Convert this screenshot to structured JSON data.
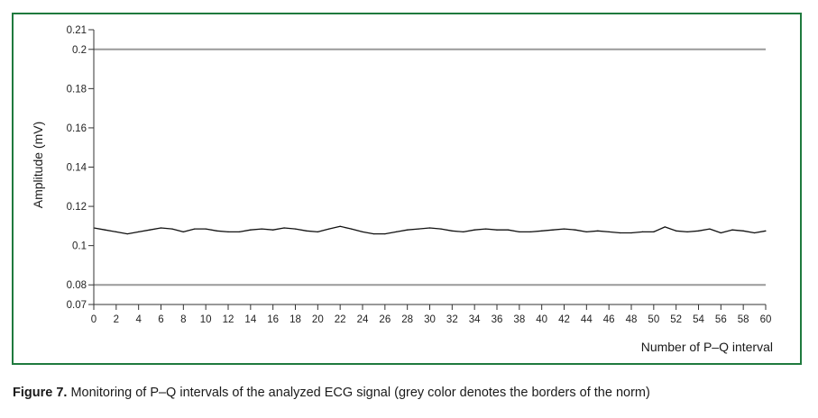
{
  "chart_data": {
    "type": "line",
    "xlabel": "Number of P–Q interval",
    "ylabel": "Amplitude (mV)",
    "xlim": [
      0,
      60
    ],
    "ylim": [
      0.07,
      0.21
    ],
    "x_ticks": [
      0,
      2,
      4,
      6,
      8,
      10,
      12,
      14,
      16,
      18,
      20,
      22,
      24,
      26,
      28,
      30,
      32,
      34,
      36,
      38,
      40,
      42,
      44,
      46,
      48,
      50,
      52,
      54,
      56,
      58,
      60
    ],
    "y_ticks": [
      0.07,
      0.08,
      0.1,
      0.12,
      0.14,
      0.16,
      0.18,
      0.2,
      0.21
    ],
    "norm_lines": {
      "upper": 0.2,
      "lower": 0.08,
      "color": "#9a9a9a"
    },
    "series_color": "#111111",
    "grid": false,
    "x": [
      0,
      1,
      2,
      3,
      4,
      5,
      6,
      7,
      8,
      9,
      10,
      11,
      12,
      13,
      14,
      15,
      16,
      17,
      18,
      19,
      20,
      21,
      22,
      23,
      24,
      25,
      26,
      27,
      28,
      29,
      30,
      31,
      32,
      33,
      34,
      35,
      36,
      37,
      38,
      39,
      40,
      41,
      42,
      43,
      44,
      45,
      46,
      47,
      48,
      49,
      50,
      51,
      52,
      53,
      54,
      55,
      56,
      57,
      58,
      59,
      60
    ],
    "values": [
      0.109,
      0.108,
      0.107,
      0.106,
      0.107,
      0.108,
      0.109,
      0.1085,
      0.107,
      0.1085,
      0.1085,
      0.1075,
      0.107,
      0.107,
      0.108,
      0.1085,
      0.108,
      0.109,
      0.1085,
      0.1075,
      0.107,
      0.1085,
      0.1098,
      0.1085,
      0.107,
      0.106,
      0.106,
      0.107,
      0.108,
      0.1085,
      0.109,
      0.1085,
      0.1075,
      0.107,
      0.108,
      0.1085,
      0.108,
      0.108,
      0.107,
      0.107,
      0.1075,
      0.108,
      0.1085,
      0.108,
      0.107,
      0.1075,
      0.107,
      0.1065,
      0.1065,
      0.107,
      0.107,
      0.1095,
      0.1075,
      0.107,
      0.1075,
      0.1085,
      0.1065,
      0.108,
      0.1075,
      0.1065,
      0.1075
    ]
  },
  "caption": {
    "label": "Figure 7.",
    "text": " Monitoring of P–Q intervals of the analyzed ECG signal (grey color denotes the borders of the norm)"
  }
}
